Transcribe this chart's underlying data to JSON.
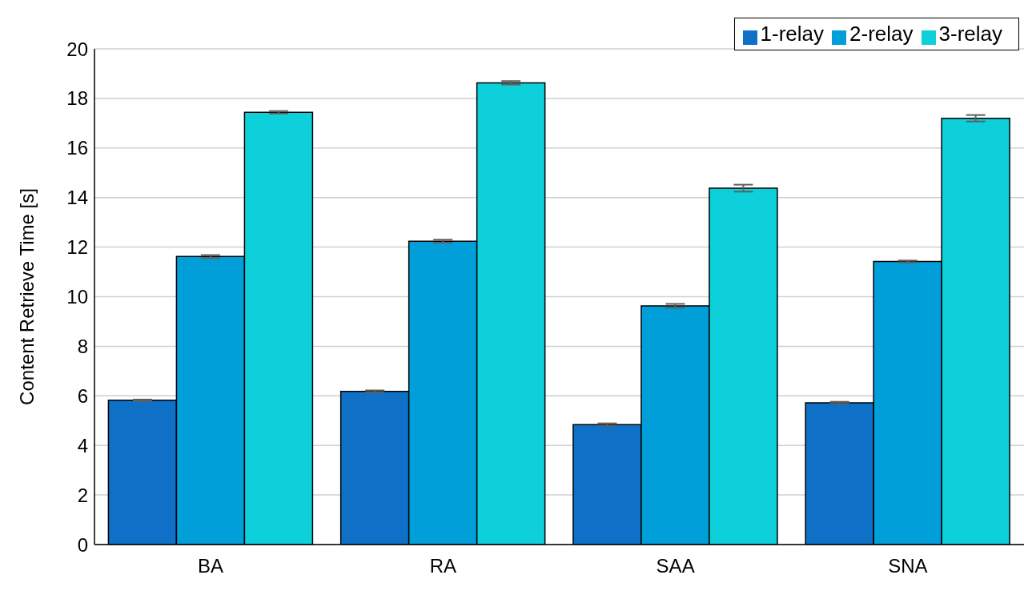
{
  "chart_data": {
    "type": "bar",
    "ylabel": "Content Retrieve Time [s]",
    "categories": [
      "BA",
      "RA",
      "SAA",
      "SNA"
    ],
    "series": [
      {
        "name": "1-relay",
        "color": "#0e70c6",
        "values": [
          5.82,
          6.18,
          4.84,
          5.72
        ],
        "errors": [
          0.03,
          0.04,
          0.05,
          0.04
        ]
      },
      {
        "name": "2-relay",
        "color": "#009fd9",
        "values": [
          11.62,
          12.24,
          9.63,
          11.42
        ],
        "errors": [
          0.06,
          0.06,
          0.08,
          0.04
        ]
      },
      {
        "name": "3-relay",
        "color": "#0dd0da",
        "values": [
          17.44,
          18.63,
          14.38,
          17.2
        ],
        "errors": [
          0.05,
          0.07,
          0.14,
          0.13
        ]
      }
    ],
    "ylim": [
      0,
      20
    ],
    "yticks": [
      0,
      2,
      4,
      6,
      8,
      10,
      12,
      14,
      16,
      18,
      20
    ],
    "grid": "y",
    "legend": "top right"
  }
}
